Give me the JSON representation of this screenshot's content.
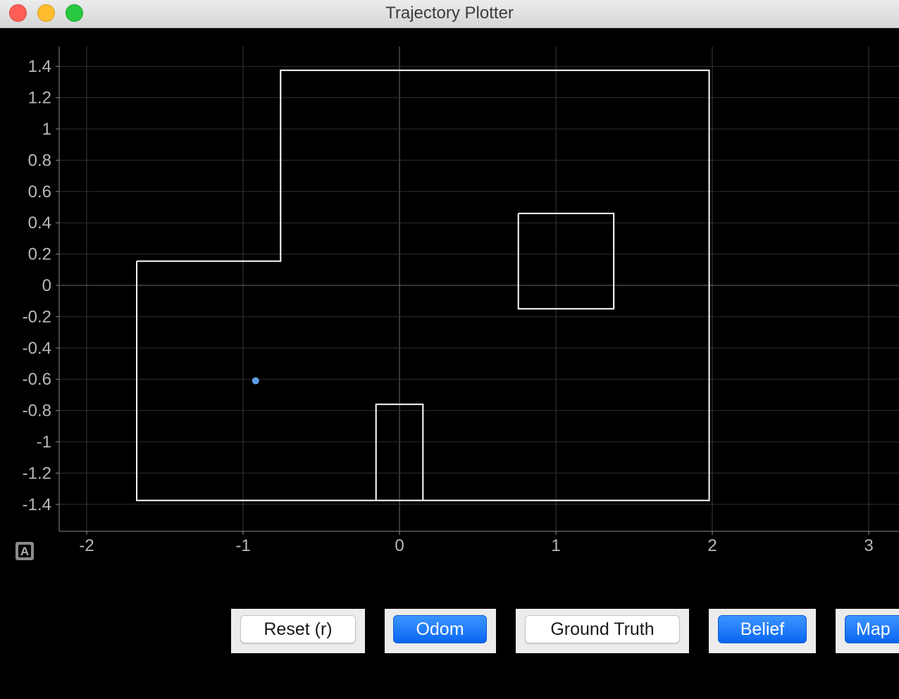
{
  "window": {
    "title": "Trajectory Plotter"
  },
  "chart_data": {
    "type": "line",
    "xlim": [
      -2.2,
      3.2
    ],
    "ylim": [
      -1.6,
      1.5
    ],
    "x_ticks": [
      -2,
      -1,
      0,
      1,
      2,
      3
    ],
    "y_ticks": [
      1.4,
      1.2,
      1,
      0.8,
      0.6,
      0.4,
      0.2,
      0,
      -0.2,
      -0.4,
      -0.6,
      -0.8,
      -1,
      -1.2,
      -1.4
    ],
    "x_tick_labels": [
      "-2",
      "-1",
      "0",
      "1",
      "2",
      "3"
    ],
    "y_tick_labels": [
      "1.4",
      "1.2",
      "1",
      "0.8",
      "0.6",
      "0.4",
      "0.2",
      "0",
      "-0.2",
      "-0.4",
      "-0.6",
      "-0.8",
      "-1",
      "-1.2",
      "-1.4"
    ],
    "grid": true,
    "series": [
      {
        "color": "#ffffff",
        "x": [
          -1.68,
          -0.76,
          -0.76,
          1.98,
          1.98,
          0.15,
          0.15,
          -0.15,
          -0.15,
          0.15,
          0.15,
          -1.68,
          -1.68
        ],
        "y": [
          0.155,
          0.155,
          1.375,
          1.375,
          -1.375,
          -1.375,
          -0.76,
          -0.76,
          -1.375,
          -1.375,
          -1.375,
          -1.375,
          0.155
        ]
      },
      {
        "color": "#ffffff",
        "x": [
          0.76,
          1.37,
          1.37,
          0.76,
          0.76
        ],
        "y": [
          0.46,
          0.46,
          -0.15,
          -0.15,
          0.46
        ]
      }
    ],
    "points": [
      {
        "x": -0.92,
        "y": -0.61,
        "color": "#5b9ee6"
      }
    ]
  },
  "autoscale_label": "A",
  "buttons": [
    {
      "label": "Reset (r)",
      "active": false
    },
    {
      "label": "Odom",
      "active": true
    },
    {
      "label": "Ground Truth",
      "active": false
    },
    {
      "label": "Belief",
      "active": true
    },
    {
      "label": "Map",
      "active": true
    }
  ]
}
